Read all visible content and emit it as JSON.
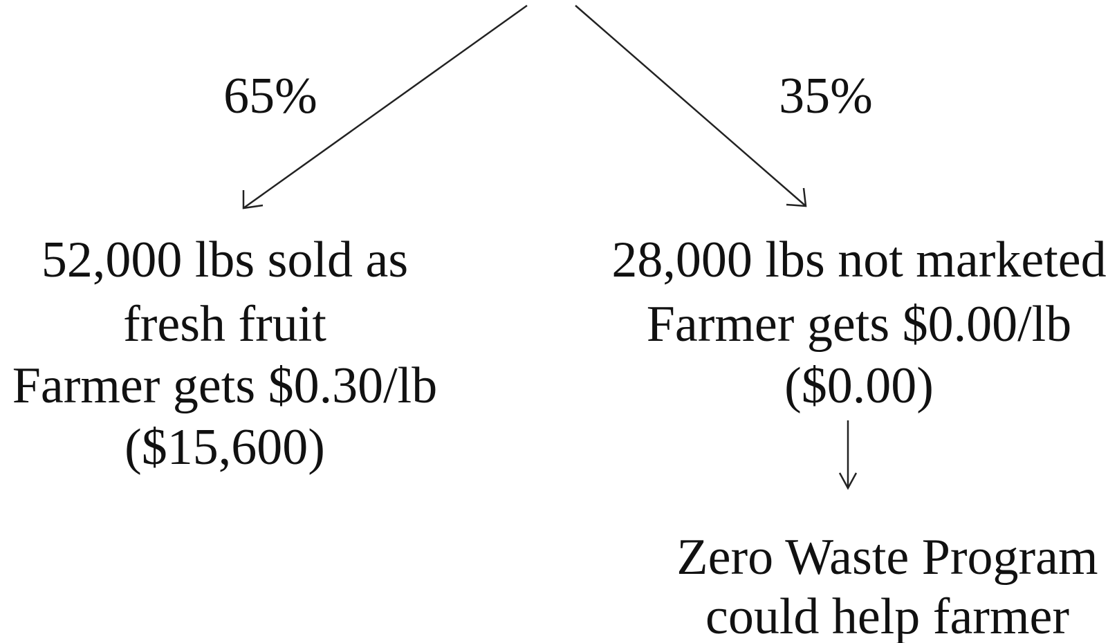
{
  "edges": [
    {
      "label": "65%"
    },
    {
      "label": "35%"
    }
  ],
  "nodes": [
    {
      "lines": [
        "52,000 lbs sold as",
        "fresh fruit",
        "Farmer gets $0.30/lb",
        "($15,600)"
      ]
    },
    {
      "lines": [
        "28,000 lbs not marketed",
        "Farmer gets $0.00/lb",
        "($0.00)"
      ]
    },
    {
      "lines": [
        "Zero Waste Program",
        "could help farmer"
      ]
    }
  ]
}
